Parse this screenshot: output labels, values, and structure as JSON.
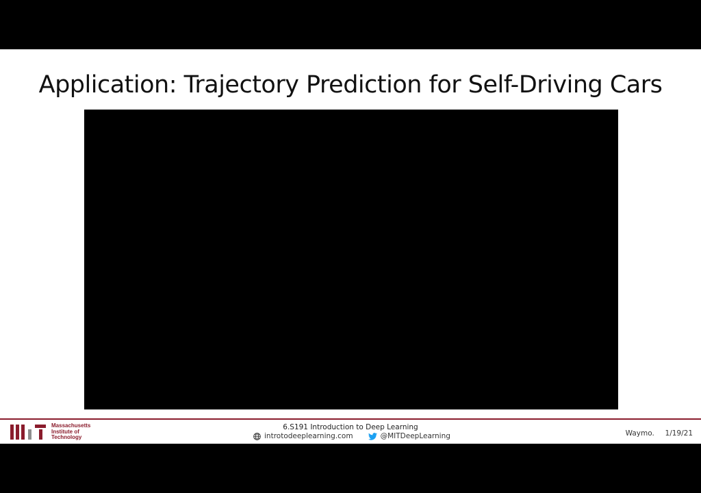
{
  "slide": {
    "title": "Application: Trajectory Prediction for Self-Driving Cars"
  },
  "footer": {
    "institution": {
      "line1": "Massachusetts",
      "line2": "Institute of",
      "line3": "Technology"
    },
    "course_title": "6.S191 Introduction to Deep Learning",
    "website": "introtodeeplearning.com",
    "twitter": "@MITDeepLearning",
    "credit": "Waymo.",
    "date": "1/19/21"
  },
  "icons": {
    "logo": "mit-logo-icon",
    "website": "globe-icon",
    "twitter": "twitter-bird-icon"
  },
  "colors": {
    "mit_red": "#8a1c2c",
    "mit_grey": "#8e8e8e",
    "twitter_blue": "#1da1f2",
    "letterbox": "#000000"
  }
}
